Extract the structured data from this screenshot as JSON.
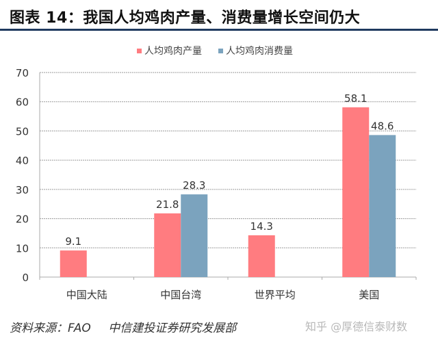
{
  "header": {
    "title": "图表 14：我国人均鸡肉产量、消费量增长空间仍大"
  },
  "legend": [
    {
      "label": "人均鸡肉产量",
      "color": "#ff7c80"
    },
    {
      "label": "人均鸡肉消费量",
      "color": "#7ba3be"
    }
  ],
  "footer": {
    "source": "资料来源：FAO",
    "department": "中信建投证券研究发展部",
    "watermark": "知乎 @厚德信泰财数"
  },
  "chart_data": {
    "type": "bar",
    "title": "图表 14：我国人均鸡肉产量、消费量增长空间仍大",
    "categories": [
      "中国大陆",
      "中国台湾",
      "世界平均",
      "美国"
    ],
    "series": [
      {
        "name": "人均鸡肉产量",
        "color": "#ff7c80",
        "values": [
          9.1,
          21.8,
          14.3,
          58.1
        ]
      },
      {
        "name": "人均鸡肉消费量",
        "color": "#7ba3be",
        "values": [
          null,
          28.3,
          null,
          48.6
        ]
      }
    ],
    "xlabel": "",
    "ylabel": "",
    "ylim": [
      0,
      70
    ],
    "yticks": [
      0,
      10,
      20,
      30,
      40,
      50,
      60,
      70
    ],
    "grid": "horizontal dashed",
    "legend_position": "top",
    "data_labels": true
  }
}
